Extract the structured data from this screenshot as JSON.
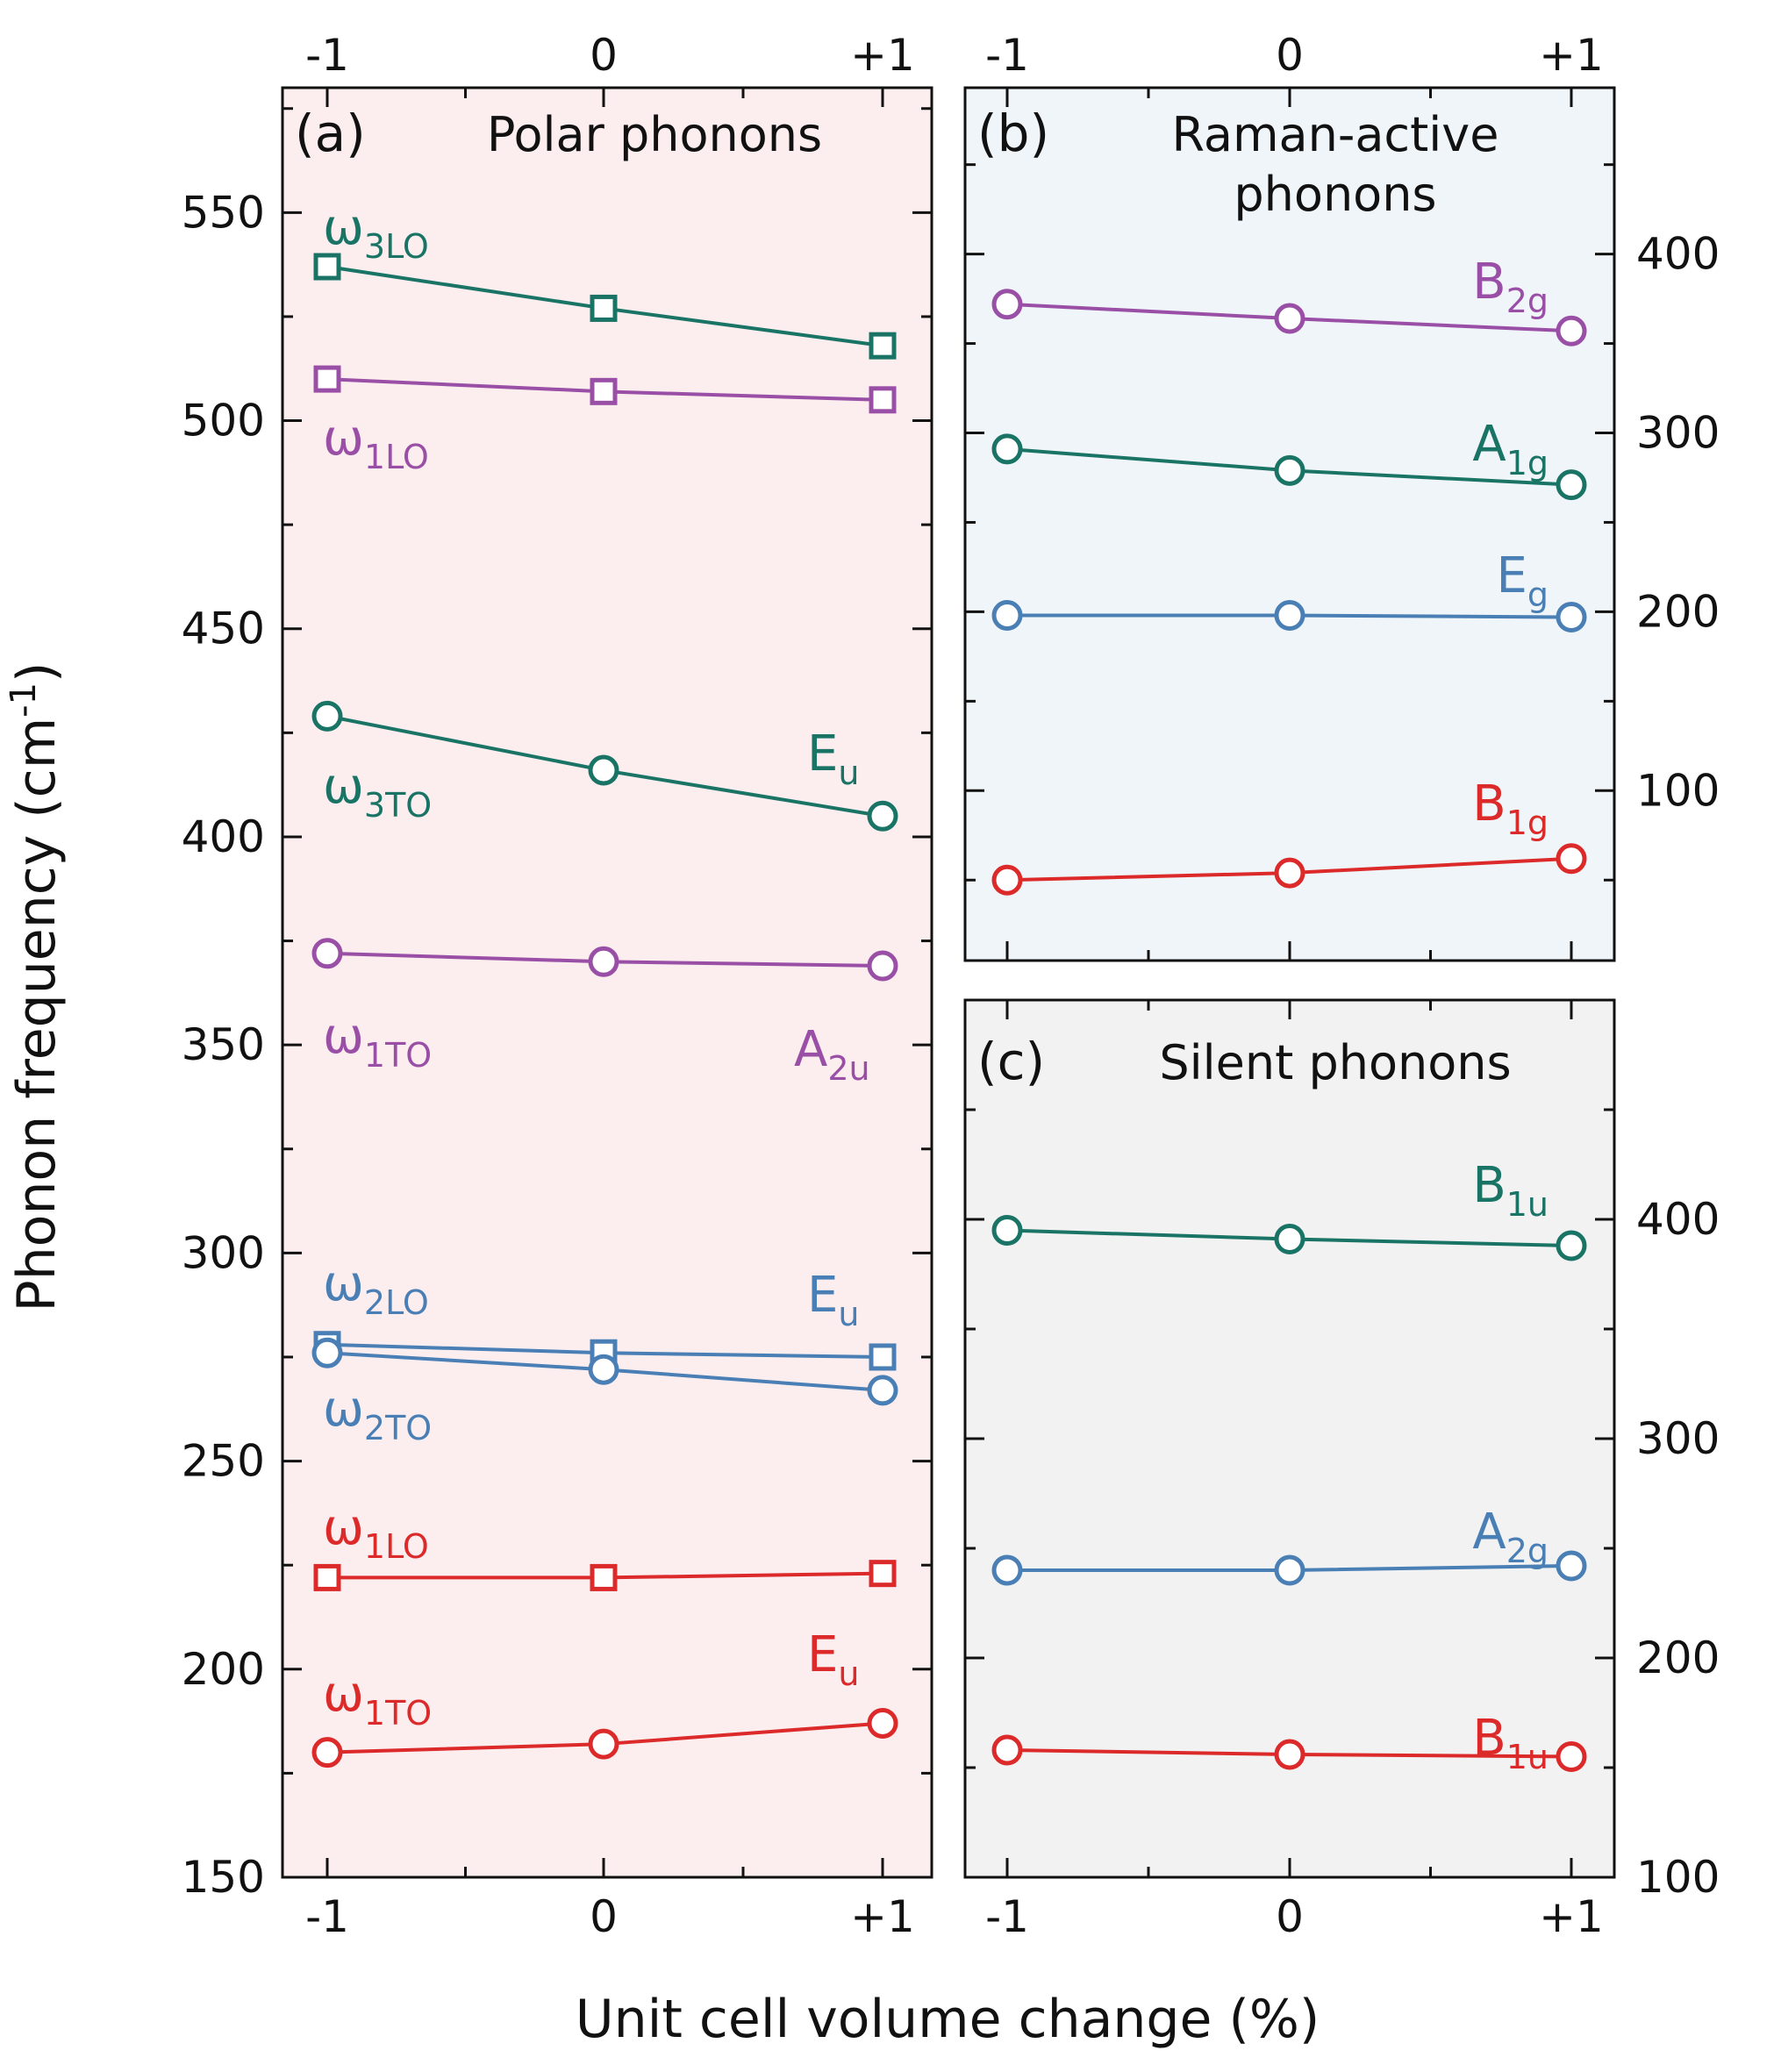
{
  "colors": {
    "green": "#1a7466",
    "purple": "#9a4fa6",
    "blue": "#4a7fb5",
    "red": "#dc2a2a",
    "panel_a_bg": "#fcedee",
    "panel_b_bg": "#f0f5f9",
    "panel_c_bg": "#f2f2f2"
  },
  "chart_data": [
    {
      "id": "a",
      "type": "line",
      "panel_label": "(a)",
      "title": "Polar phonons",
      "ylabel": "Phonon frequency (cm⁻¹)",
      "ylabel_main": "Phonon frequency (cm",
      "ylabel_sup": "-1",
      "ylabel_close": ")",
      "xlabel": "Unit cell volume change (%)",
      "x": [
        -1,
        0,
        1
      ],
      "x_tick_labels": [
        "-1",
        "0",
        "+1"
      ],
      "ylim": [
        150,
        580
      ],
      "yticks": [
        150,
        200,
        250,
        300,
        350,
        400,
        450,
        500,
        550
      ],
      "y_axis_side": "left",
      "background": "#fcedee",
      "series": [
        {
          "name": "ω3LO",
          "label_main": "ω",
          "label_sub": "3LO",
          "marker": "square",
          "color": "#1a7466",
          "values": [
            537,
            527,
            518
          ]
        },
        {
          "name": "ω1LO",
          "label_main": "ω",
          "label_sub": "1LO",
          "marker": "square",
          "color": "#9a4fa6",
          "values": [
            510,
            507,
            505
          ]
        },
        {
          "name": "ω3TO",
          "label_main": "ω",
          "label_sub": "3TO",
          "marker": "circle",
          "color": "#1a7466",
          "values": [
            429,
            416,
            405
          ]
        },
        {
          "name": "ω1TO",
          "label_main": "ω",
          "label_sub": "1TO",
          "marker": "circle",
          "color": "#9a4fa6",
          "values": [
            372,
            370,
            369
          ]
        },
        {
          "name": "ω2LO",
          "label_main": "ω",
          "label_sub": "2LO",
          "marker": "square",
          "color": "#4a7fb5",
          "values": [
            278,
            276,
            275
          ]
        },
        {
          "name": "ω2TO",
          "label_main": "ω",
          "label_sub": "2TO",
          "marker": "circle",
          "color": "#4a7fb5",
          "values": [
            276,
            272,
            267
          ]
        },
        {
          "name": "ω1LO",
          "label_main": "ω",
          "label_sub": "1LO",
          "marker": "square",
          "color": "#dc2a2a",
          "values": [
            222,
            222,
            223
          ]
        },
        {
          "name": "ω1TO",
          "label_main": "ω",
          "label_sub": "1TO",
          "marker": "circle",
          "color": "#dc2a2a",
          "values": [
            180,
            182,
            187
          ]
        }
      ],
      "annotations": [
        {
          "main": "E",
          "sub": "u",
          "color": "#1a7466",
          "near_value": 419
        },
        {
          "main": "A",
          "sub": "2u",
          "color": "#9a4fa6",
          "near_value": 347
        },
        {
          "main": "E",
          "sub": "u",
          "color": "#4a7fb5",
          "near_value": 284
        },
        {
          "main": "E",
          "sub": "u",
          "color": "#dc2a2a",
          "near_value": 203
        }
      ]
    },
    {
      "id": "b",
      "type": "line",
      "panel_label": "(b)",
      "title": "Raman-active phonons",
      "title_lines": [
        "Raman-active",
        "phonons"
      ],
      "x": [
        -1,
        0,
        1
      ],
      "x_tick_labels": [
        "-1",
        "0",
        "+1"
      ],
      "ylim": [
        5,
        493
      ],
      "yticks": [
        100,
        200,
        300,
        400
      ],
      "y_axis_side": "right",
      "background": "#f0f5f9",
      "series": [
        {
          "name": "B2g",
          "label_main": "B",
          "label_sub": "2g",
          "marker": "circle",
          "color": "#9a4fa6",
          "values": [
            372,
            364,
            357
          ]
        },
        {
          "name": "A1g",
          "label_main": "A",
          "label_sub": "1g",
          "marker": "circle",
          "color": "#1a7466",
          "values": [
            291,
            279,
            271
          ]
        },
        {
          "name": "Eg",
          "label_main": "E",
          "label_sub": "g",
          "marker": "circle",
          "color": "#4a7fb5",
          "values": [
            198,
            198,
            197
          ]
        },
        {
          "name": "B1g",
          "label_main": "B",
          "label_sub": "1g",
          "marker": "circle",
          "color": "#dc2a2a",
          "values": [
            50,
            54,
            62
          ]
        }
      ]
    },
    {
      "id": "c",
      "type": "line",
      "panel_label": "(c)",
      "title": "Silent phonons",
      "x": [
        -1,
        0,
        1
      ],
      "x_tick_labels": [
        "-1",
        "0",
        "+1"
      ],
      "ylim": [
        100,
        500
      ],
      "yticks": [
        100,
        200,
        300,
        400
      ],
      "y_axis_side": "right",
      "background": "#f2f2f2",
      "series": [
        {
          "name": "B1u",
          "label_main": "B",
          "label_sub": "1u",
          "marker": "circle",
          "color": "#1a7466",
          "values": [
            395,
            391,
            388
          ]
        },
        {
          "name": "A2g",
          "label_main": "A",
          "label_sub": "2g",
          "marker": "circle",
          "color": "#4a7fb5",
          "values": [
            240,
            240,
            242
          ]
        },
        {
          "name": "B1u",
          "label_main": "B",
          "label_sub": "1u",
          "marker": "circle",
          "color": "#dc2a2a",
          "values": [
            158,
            156,
            155
          ]
        }
      ]
    }
  ]
}
